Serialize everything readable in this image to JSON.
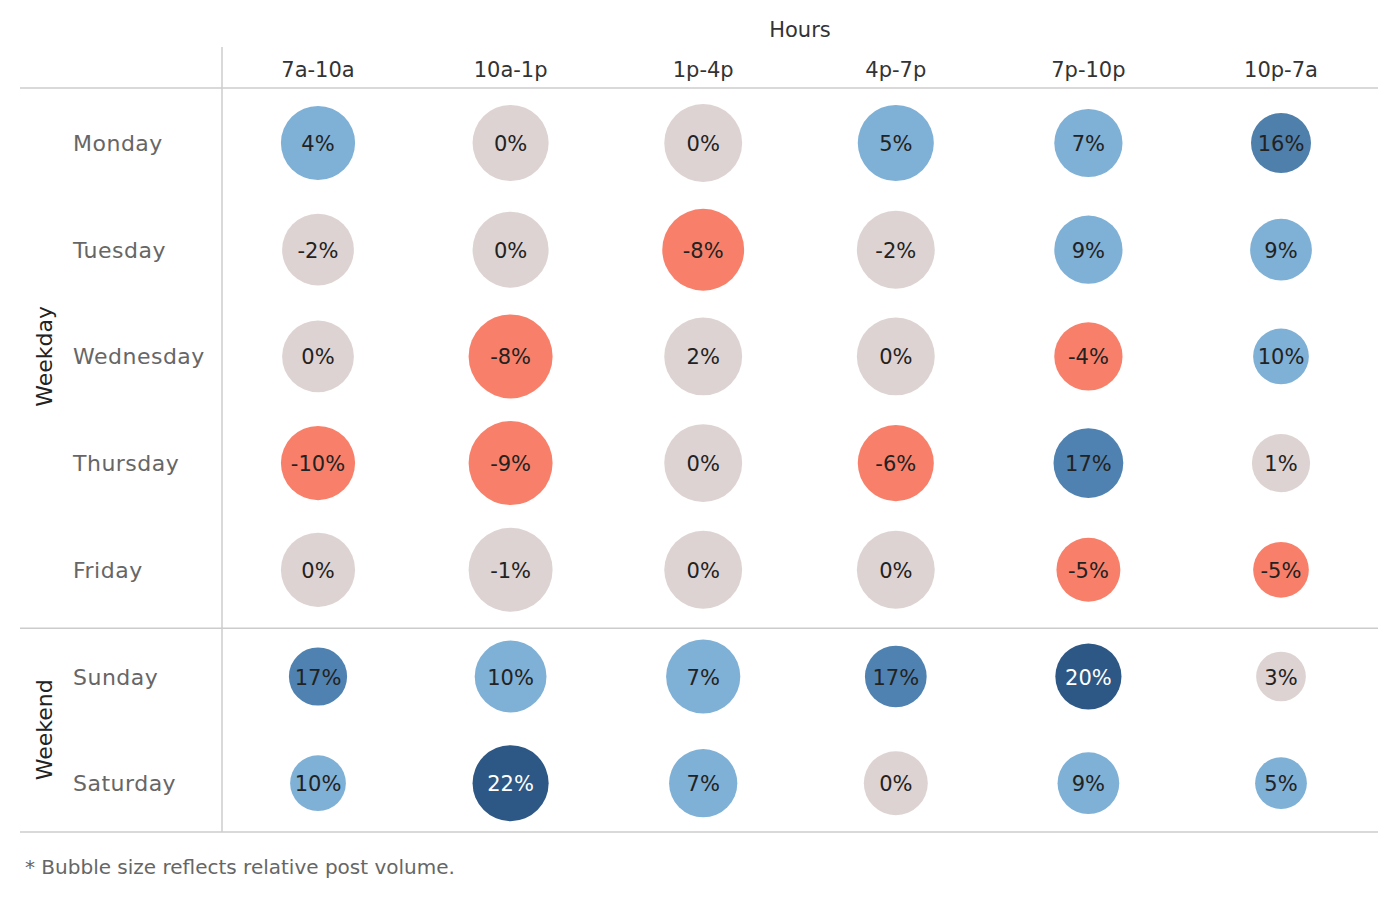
{
  "chart_data": {
    "type": "bubble_grid",
    "x_label": "Hours",
    "categories": [
      "7a-10a",
      "10a-1p",
      "1p-4p",
      "4p-7p",
      "7p-10p",
      "10p-7a"
    ],
    "row_groups": [
      {
        "label": "Weekday",
        "rows": [
          "Monday",
          "Tuesday",
          "Wednesday",
          "Thursday",
          "Friday"
        ]
      },
      {
        "label": "Weekend",
        "rows": [
          "Sunday",
          "Saturday"
        ]
      }
    ],
    "values": [
      [
        4,
        0,
        0,
        5,
        7,
        16
      ],
      [
        -2,
        0,
        -8,
        -2,
        9,
        9
      ],
      [
        0,
        -8,
        2,
        0,
        -4,
        10
      ],
      [
        -10,
        -9,
        0,
        -6,
        17,
        1
      ],
      [
        0,
        -1,
        0,
        0,
        -5,
        -5
      ],
      [
        17,
        10,
        7,
        17,
        20,
        3
      ],
      [
        10,
        22,
        7,
        0,
        9,
        5
      ]
    ],
    "value_labels": [
      [
        "4%",
        "0%",
        "0%",
        "5%",
        "7%",
        "16%"
      ],
      [
        "-2%",
        "0%",
        "-8%",
        "-2%",
        "9%",
        "9%"
      ],
      [
        "0%",
        "-8%",
        "2%",
        "0%",
        "-4%",
        "10%"
      ],
      [
        "-10%",
        "-9%",
        "0%",
        "-6%",
        "17%",
        "1%"
      ],
      [
        "0%",
        "-1%",
        "0%",
        "0%",
        "-5%",
        "-5%"
      ],
      [
        "17%",
        "10%",
        "7%",
        "17%",
        "20%",
        "3%"
      ],
      [
        "10%",
        "22%",
        "7%",
        "0%",
        "9%",
        "5%"
      ]
    ],
    "sizes": [
      [
        78,
        82,
        86,
        82,
        66,
        51
      ],
      [
        73,
        82,
        95,
        86,
        66,
        54
      ],
      [
        73,
        100,
        86,
        86,
        66,
        44
      ],
      [
        78,
        100,
        86,
        82,
        69,
        48
      ],
      [
        78,
        100,
        86,
        86,
        58,
        44
      ],
      [
        48,
        73,
        78,
        54,
        62,
        35
      ],
      [
        44,
        82,
        66,
        58,
        54,
        38
      ]
    ],
    "colors": [
      [
        "#7fb0d6",
        "#ddd3d2",
        "#ddd3d2",
        "#7fb0d6",
        "#7fb0d6",
        "#4f7fab"
      ],
      [
        "#ddd3d2",
        "#ddd3d2",
        "#f8806a",
        "#ddd3d2",
        "#7fb0d6",
        "#7fb0d6"
      ],
      [
        "#ddd3d2",
        "#f8806a",
        "#ddd3d2",
        "#ddd3d2",
        "#f8806a",
        "#7fb0d6"
      ],
      [
        "#f8806a",
        "#f8806a",
        "#ddd3d2",
        "#f8806a",
        "#4f82b0",
        "#ddd3d2"
      ],
      [
        "#ddd3d2",
        "#ddd3d2",
        "#ddd3d2",
        "#ddd3d2",
        "#f8806a",
        "#f8806a"
      ],
      [
        "#4f82b0",
        "#7fb0d6",
        "#7fb0d6",
        "#4f82b0",
        "#2d5784",
        "#ddd3d2"
      ],
      [
        "#7fb0d6",
        "#2d5784",
        "#7fb0d6",
        "#ddd3d2",
        "#7fb0d6",
        "#7fb0d6"
      ]
    ],
    "data_labels": true,
    "note": "* Bubble size reflects relative post volume."
  }
}
